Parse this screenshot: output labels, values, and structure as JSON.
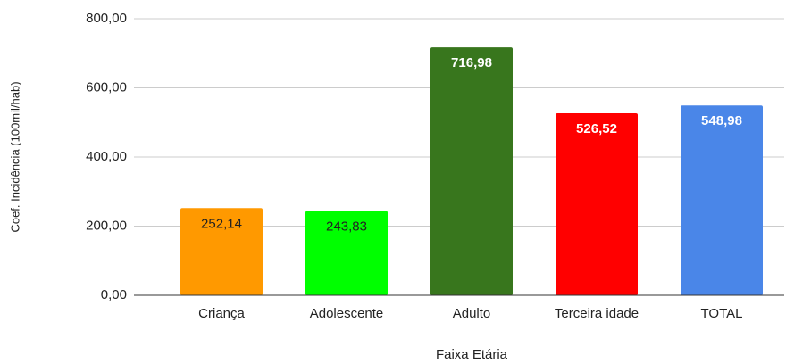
{
  "chart_data": {
    "type": "bar",
    "categories": [
      "Criança",
      "Adolescente",
      "Adulto",
      "Terceira idade",
      "TOTAL"
    ],
    "values": [
      252.14,
      243.83,
      716.98,
      526.52,
      548.98
    ],
    "value_labels": [
      "252,14",
      "243,83",
      "716,98",
      "526,52",
      "548,98"
    ],
    "colors": [
      "#ff9900",
      "#00ff00",
      "#38761d",
      "#ff0000",
      "#4a86e8"
    ],
    "value_label_colors": [
      "#222222",
      "#222222",
      "#ffffff",
      "#ffffff",
      "#ffffff"
    ],
    "xlabel": "Faixa Etária",
    "ylabel": "Coef. Incidência (100mil/hab)",
    "ylim": [
      0,
      800
    ],
    "yticks": [
      {
        "value": 0,
        "label": "0,00"
      },
      {
        "value": 200,
        "label": "200,00"
      },
      {
        "value": 400,
        "label": "400,00"
      },
      {
        "value": 600,
        "label": "600,00"
      },
      {
        "value": 800,
        "label": "800,00"
      }
    ],
    "grid": true
  }
}
